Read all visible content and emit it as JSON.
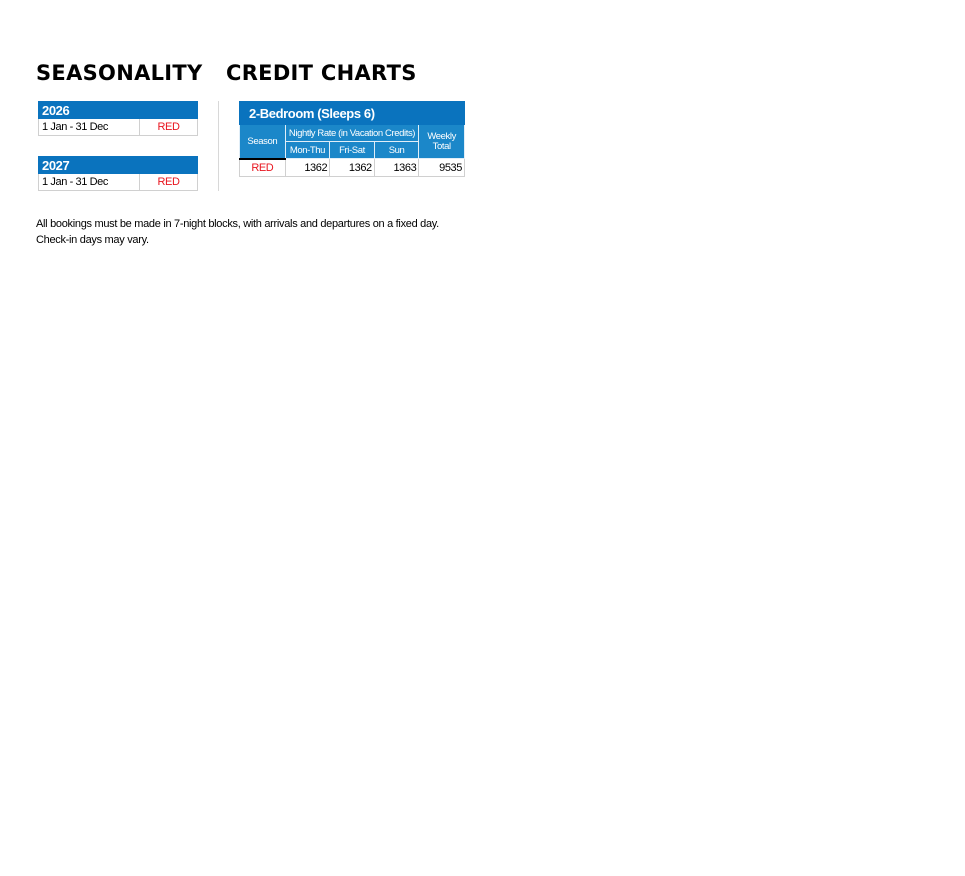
{
  "seasonality": {
    "heading": "SEASONALITY",
    "years": [
      {
        "year": "2026",
        "range": "1 Jan - 31 Dec",
        "season": "RED"
      },
      {
        "year": "2027",
        "range": "1 Jan - 31 Dec",
        "season": "RED"
      }
    ]
  },
  "credit_charts": {
    "heading": "CREDIT CHARTS",
    "title": "2-Bedroom (Sleeps 6)",
    "headers": {
      "season": "Season",
      "nightly": "Nightly Rate (in Vacation Credits)",
      "mon_thu": "Mon-Thu",
      "fri_sat": "Fri-Sat",
      "sun": "Sun",
      "weekly": "Weekly Total"
    },
    "rows": [
      {
        "season": "RED",
        "mon_thu": "1362",
        "fri_sat": "1362",
        "sun": "1363",
        "weekly": "9535"
      }
    ]
  },
  "colors": {
    "header_blue": "#0a73be",
    "subheader_blue": "#1b87c9",
    "red": "#e8141e"
  },
  "note": {
    "line1": "All bookings must be made in 7-night blocks, with arrivals and departures on a fixed day.",
    "line2": "Check-in days may vary."
  }
}
